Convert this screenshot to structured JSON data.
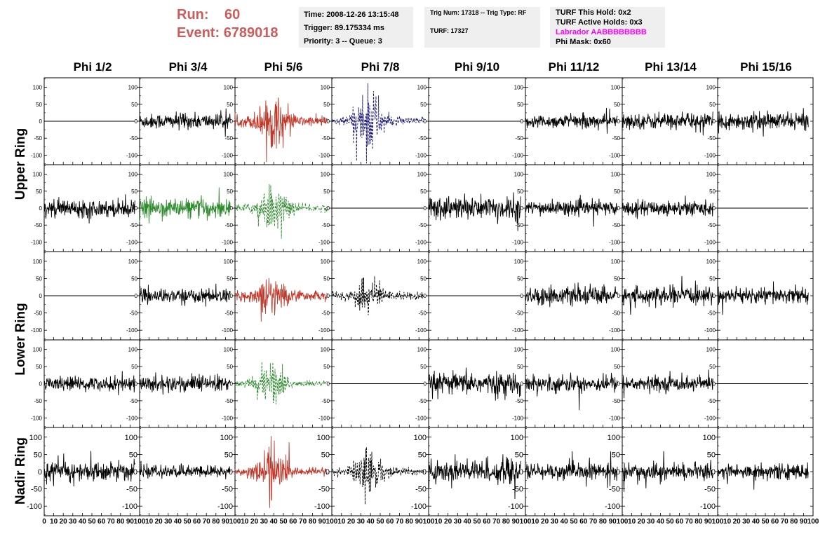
{
  "header": {
    "run_label": "Run:",
    "run_value": "60",
    "event_label": "Event:",
    "event_value": "6789018"
  },
  "time_box": {
    "time": "Time: 2008-12-26 13:15:48",
    "trigger": "Trigger: 89.175334 ms",
    "priority": "Priority: 3 -- Queue: 3"
  },
  "trig_box": {
    "trig": "Trig Num: 17318 -- Trig Type: RF",
    "turf": "TURF: 17327"
  },
  "turf_box": {
    "hold": "TURF This Hold: 0x2",
    "active": "TURF Active Holds: 0x3",
    "labrador": "Labrador AABBBBBBBB",
    "phimask": "Phi Mask: 0x60",
    "labrador_color": "#ff00ff"
  },
  "colors": {
    "title_red": "#cd5c5c",
    "trace_black": "#000000",
    "trace_red": "#c0392b",
    "trace_green": "#2e8b2e",
    "trace_blue": "#1a1a7a"
  },
  "columns": [
    "Phi 1/2",
    "Phi 3/4",
    "Phi 5/6",
    "Phi 7/8",
    "Phi 9/10",
    "Phi 11/12",
    "Phi 13/14",
    "Phi 15/16"
  ],
  "rows": [
    {
      "label": "Upper Ring",
      "span": [
        0,
        1
      ]
    },
    {
      "label": "Lower Ring",
      "span": [
        2,
        3
      ]
    },
    {
      "label": "Nadir Ring",
      "span": [
        4,
        4
      ]
    }
  ],
  "chart_data": {
    "type": "line",
    "layout": "grid of 5 rows x 8 columns of waveform panels",
    "xlim": [
      0,
      100
    ],
    "ylim": [
      -128,
      128
    ],
    "x_ticks": [
      "0",
      "10",
      "20",
      "30",
      "40",
      "50",
      "60",
      "70",
      "80",
      "90",
      "100"
    ],
    "y_ticks": [
      "100",
      "50",
      "0",
      "-50",
      "-100"
    ],
    "x_range_samples": [
      0,
      95
    ],
    "grid": false,
    "panels": [
      [
        {
          "style": "flat",
          "color": "black"
        },
        {
          "style": "noise",
          "color": "black",
          "amp": 18
        },
        {
          "style": "pulse",
          "color": "red",
          "amp": 20,
          "burst": 55
        },
        {
          "style": "pulse-dashed",
          "color": "blue",
          "amp": 15,
          "burst": 75
        },
        {
          "style": "flat",
          "color": "black"
        },
        {
          "style": "noise",
          "color": "black",
          "amp": 16
        },
        {
          "style": "noise",
          "color": "black",
          "amp": 18
        },
        {
          "style": "noise",
          "color": "black",
          "amp": 20
        }
      ],
      [
        {
          "style": "noise",
          "color": "black",
          "amp": 20
        },
        {
          "style": "noise",
          "color": "green",
          "amp": 22
        },
        {
          "style": "pulse-dashed",
          "color": "green",
          "amp": 15,
          "burst": 50
        },
        {
          "style": "flat",
          "color": "black"
        },
        {
          "style": "noise",
          "color": "black",
          "amp": 28
        },
        {
          "style": "noise",
          "color": "black",
          "amp": 17
        },
        {
          "style": "noise",
          "color": "black",
          "amp": 18
        },
        {
          "style": "flat",
          "color": "black"
        }
      ],
      [
        {
          "style": "flat",
          "color": "black"
        },
        {
          "style": "noise",
          "color": "black",
          "amp": 16
        },
        {
          "style": "pulse",
          "color": "red",
          "amp": 18,
          "burst": 40
        },
        {
          "style": "pulse-dashed",
          "color": "black",
          "amp": 15,
          "burst": 35
        },
        {
          "style": "flat",
          "color": "black"
        },
        {
          "style": "noise",
          "color": "black",
          "amp": 20
        },
        {
          "style": "noise",
          "color": "black",
          "amp": 19
        },
        {
          "style": "noise",
          "color": "black",
          "amp": 18
        }
      ],
      [
        {
          "style": "noise",
          "color": "black",
          "amp": 16
        },
        {
          "style": "noise",
          "color": "black",
          "amp": 20
        },
        {
          "style": "pulse-dashed",
          "color": "green",
          "amp": 12,
          "burst": 45
        },
        {
          "style": "flat",
          "color": "black"
        },
        {
          "style": "noise",
          "color": "black",
          "amp": 25
        },
        {
          "style": "noise",
          "color": "black",
          "amp": 19
        },
        {
          "style": "noise",
          "color": "black",
          "amp": 17
        },
        {
          "style": "flat",
          "color": "black"
        }
      ],
      [
        {
          "style": "noise",
          "color": "black",
          "amp": 22
        },
        {
          "style": "noise",
          "color": "black",
          "amp": 14
        },
        {
          "style": "pulse",
          "color": "red",
          "amp": 15,
          "burst": 50
        },
        {
          "style": "pulse-dashed",
          "color": "black",
          "amp": 15,
          "burst": 45
        },
        {
          "style": "noise",
          "color": "black",
          "amp": 28
        },
        {
          "style": "noise",
          "color": "black",
          "amp": 19
        },
        {
          "style": "noise",
          "color": "black",
          "amp": 18
        },
        {
          "style": "noise",
          "color": "black",
          "amp": 18
        }
      ]
    ]
  }
}
